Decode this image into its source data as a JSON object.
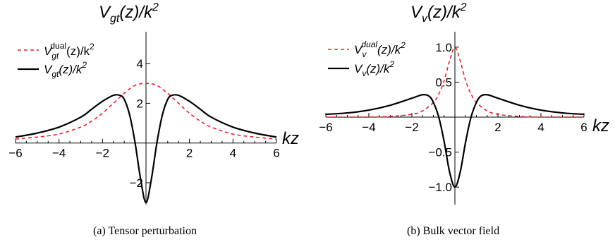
{
  "chart_data": [
    {
      "type": "line",
      "panel": "a",
      "title": "V_gt(z)/k^2",
      "xlabel": "kz",
      "caption": "(a) Tensor perturbation",
      "xlim": [
        -6,
        6
      ],
      "ylim": [
        -3.1,
        5.6
      ],
      "xticks": [
        -6,
        -4,
        -2,
        2,
        4,
        6
      ],
      "yticks": [
        -2,
        2,
        4
      ],
      "xtick_labels": [
        "−6",
        "−4",
        "−2",
        "2",
        "4",
        "6"
      ],
      "ytick_labels": [
        "−2",
        "2",
        "4"
      ],
      "legend_position": "top-left",
      "legend": [
        "V_gt^dual(z)/k^2",
        "V_gt(z)/k^2"
      ],
      "series": [
        {
          "name": "V_gt^dual(z)/k^2",
          "style": "dashed",
          "color": "#e8202a",
          "x": [
            -6,
            -5,
            -4,
            -3,
            -2.5,
            -2,
            -1.5,
            -1,
            -0.5,
            0,
            0.5,
            1,
            1.5,
            2,
            2.5,
            3,
            4,
            5,
            6
          ],
          "y": [
            0.2,
            0.3,
            0.45,
            0.8,
            1.1,
            1.5,
            2.0,
            2.5,
            2.9,
            3.0,
            2.9,
            2.5,
            2.0,
            1.5,
            1.1,
            0.8,
            0.45,
            0.3,
            0.2
          ]
        },
        {
          "name": "V_gt(z)/k^2",
          "style": "solid",
          "color": "#000000",
          "x": [
            -6,
            -5,
            -4,
            -3,
            -2.5,
            -2,
            -1.5,
            -1.2,
            -1,
            -0.75,
            -0.5,
            -0.25,
            0,
            0.25,
            0.5,
            0.75,
            1,
            1.2,
            1.5,
            2,
            2.5,
            3,
            4,
            5,
            6
          ],
          "y": [
            0.3,
            0.5,
            0.8,
            1.3,
            1.7,
            2.1,
            2.4,
            2.4,
            2.2,
            1.4,
            0.0,
            -1.8,
            -3.0,
            -1.8,
            0.0,
            1.4,
            2.2,
            2.4,
            2.4,
            2.1,
            1.7,
            1.3,
            0.8,
            0.5,
            0.3
          ]
        }
      ]
    },
    {
      "type": "line",
      "panel": "b",
      "title": "V_v(z)/k^2",
      "xlabel": "kz",
      "caption": "(b) Bulk vector field",
      "xlim": [
        -6,
        6
      ],
      "ylim": [
        -1.25,
        1.22
      ],
      "xticks": [
        -6,
        -4,
        -2,
        2,
        4,
        6
      ],
      "yticks": [
        -1.0,
        -0.5,
        0.5,
        1.0
      ],
      "xtick_labels": [
        "−6",
        "−4",
        "−2",
        "2",
        "4",
        "6"
      ],
      "ytick_labels": [
        "−1.0",
        "−0.5",
        "0.5",
        "1.0"
      ],
      "legend_position": "top-left",
      "legend": [
        "V_v^dual(z)/k^2",
        "V_v(z)/k^2"
      ],
      "series": [
        {
          "name": "V_v^dual(z)/k^2",
          "style": "dashed",
          "color": "#e8202a",
          "x": [
            -6,
            -4,
            -3,
            -2,
            -1.5,
            -1,
            -0.75,
            -0.5,
            -0.25,
            0,
            0.25,
            0.5,
            0.75,
            1,
            1.5,
            2,
            3,
            4,
            6
          ],
          "y": [
            0.0,
            0.0,
            0.01,
            0.04,
            0.09,
            0.21,
            0.33,
            0.52,
            0.8,
            1.0,
            0.8,
            0.52,
            0.33,
            0.21,
            0.09,
            0.04,
            0.01,
            0.0,
            0.0
          ]
        },
        {
          "name": "V_v(z)/k^2",
          "style": "solid",
          "color": "#000000",
          "x": [
            -6,
            -5,
            -4,
            -3,
            -2,
            -1.5,
            -1.2,
            -1,
            -0.75,
            -0.5,
            -0.25,
            0,
            0.25,
            0.5,
            0.75,
            1,
            1.2,
            1.5,
            2,
            3,
            4,
            5,
            6
          ],
          "y": [
            0.04,
            0.06,
            0.1,
            0.17,
            0.27,
            0.32,
            0.3,
            0.21,
            0.0,
            -0.35,
            -0.78,
            -1.0,
            -0.78,
            -0.35,
            0.0,
            0.21,
            0.3,
            0.32,
            0.27,
            0.17,
            0.1,
            0.06,
            0.04
          ]
        }
      ]
    }
  ]
}
